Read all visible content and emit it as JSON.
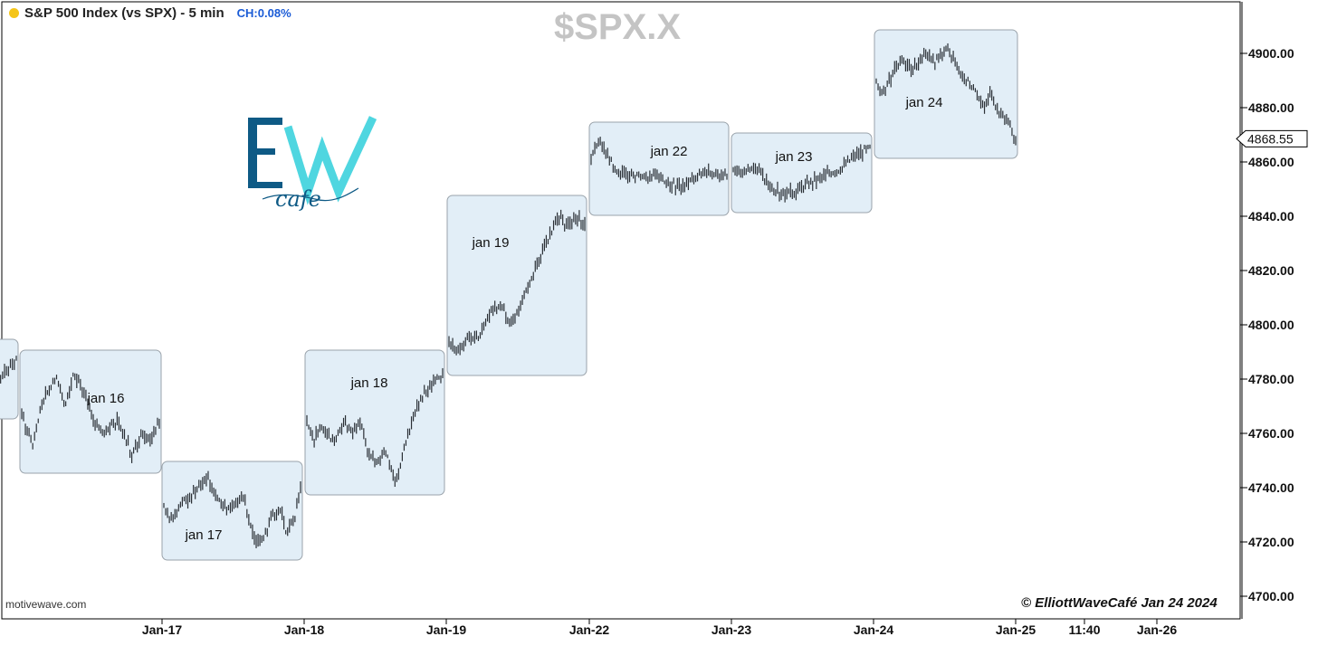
{
  "header": {
    "title": "S&P 500 Index (vs SPX) - 5 min",
    "change": "CH:0.08%",
    "symbol": "$SPX.X"
  },
  "footer": {
    "source": "motivewave.com",
    "copyright": "© ElliottWaveCafé Jan 24 2024"
  },
  "logo": {
    "letters": "EW",
    "script": "cafe",
    "colors": [
      "#0e5a85",
      "#4fd6e0"
    ]
  },
  "colors": {
    "bar": "#2a2f35",
    "box_fill": "#e2eef7",
    "box_stroke": "#9aa3ab",
    "last_price_box": "#ffffff"
  },
  "chart_data": {
    "type": "bar",
    "title": "S&P 500 Index (vs SPX) - 5 min",
    "ylim": [
      4695,
      4915
    ],
    "y_ticks": [
      "4700.00",
      "4720.00",
      "4740.00",
      "4760.00",
      "4780.00",
      "4800.00",
      "4820.00",
      "4840.00",
      "4860.00",
      "4880.00",
      "4900.00"
    ],
    "x_ticks": [
      "Jan-17",
      "Jan-18",
      "Jan-19",
      "Jan-22",
      "Jan-23",
      "Jan-24",
      "Jan-25",
      "11:40",
      "Jan-26"
    ],
    "last_price": "4868.55",
    "grid": false,
    "sessions": [
      {
        "label": "",
        "y_range": [
          4770,
          4790
        ],
        "path": [
          [
            0,
            4777
          ],
          [
            0.5,
            4782
          ],
          [
            1,
            4787
          ]
        ]
      },
      {
        "label": "jan 16",
        "y_range": [
          4750,
          4786
        ],
        "path": [
          [
            0,
            4767
          ],
          [
            0.08,
            4755
          ],
          [
            0.15,
            4772
          ],
          [
            0.25,
            4780
          ],
          [
            0.32,
            4770
          ],
          [
            0.38,
            4782
          ],
          [
            0.45,
            4776
          ],
          [
            0.52,
            4765
          ],
          [
            0.6,
            4760
          ],
          [
            0.7,
            4765
          ],
          [
            0.8,
            4752
          ],
          [
            0.88,
            4760
          ],
          [
            0.95,
            4758
          ],
          [
            1,
            4765
          ]
        ]
      },
      {
        "label": "jan 17",
        "y_range": [
          4718,
          4745
        ],
        "path": [
          [
            0,
            4733
          ],
          [
            0.05,
            4728
          ],
          [
            0.12,
            4734
          ],
          [
            0.22,
            4738
          ],
          [
            0.32,
            4744
          ],
          [
            0.4,
            4735
          ],
          [
            0.5,
            4732
          ],
          [
            0.58,
            4737
          ],
          [
            0.66,
            4722
          ],
          [
            0.7,
            4720
          ],
          [
            0.78,
            4728
          ],
          [
            0.85,
            4732
          ],
          [
            0.9,
            4723
          ],
          [
            0.96,
            4730
          ],
          [
            1,
            4740
          ]
        ]
      },
      {
        "label": "jan 18",
        "y_range": [
          4742,
          4786
        ],
        "path": [
          [
            0,
            4764
          ],
          [
            0.05,
            4758
          ],
          [
            0.12,
            4762
          ],
          [
            0.2,
            4757
          ],
          [
            0.28,
            4765
          ],
          [
            0.34,
            4760
          ],
          [
            0.4,
            4764
          ],
          [
            0.45,
            4752
          ],
          [
            0.52,
            4750
          ],
          [
            0.58,
            4754
          ],
          [
            0.62,
            4746
          ],
          [
            0.66,
            4743
          ],
          [
            0.72,
            4755
          ],
          [
            0.8,
            4768
          ],
          [
            0.88,
            4776
          ],
          [
            0.95,
            4780
          ],
          [
            1,
            4782
          ]
        ]
      },
      {
        "label": "jan 19",
        "y_range": [
          4786,
          4843
        ],
        "path": [
          [
            0,
            4794
          ],
          [
            0.06,
            4790
          ],
          [
            0.14,
            4796
          ],
          [
            0.22,
            4795
          ],
          [
            0.3,
            4804
          ],
          [
            0.38,
            4808
          ],
          [
            0.44,
            4801
          ],
          [
            0.5,
            4804
          ],
          [
            0.56,
            4812
          ],
          [
            0.62,
            4818
          ],
          [
            0.68,
            4826
          ],
          [
            0.74,
            4833
          ],
          [
            0.8,
            4840
          ],
          [
            0.86,
            4836
          ],
          [
            0.92,
            4840
          ],
          [
            1,
            4838
          ]
        ]
      },
      {
        "label": "jan 22",
        "y_range": [
          4845,
          4870
        ],
        "path": [
          [
            0,
            4862
          ],
          [
            0.05,
            4868
          ],
          [
            0.12,
            4862
          ],
          [
            0.2,
            4856
          ],
          [
            0.3,
            4855
          ],
          [
            0.4,
            4854
          ],
          [
            0.48,
            4856
          ],
          [
            0.56,
            4852
          ],
          [
            0.66,
            4851
          ],
          [
            0.76,
            4854
          ],
          [
            0.86,
            4857
          ],
          [
            0.94,
            4855
          ],
          [
            1,
            4854
          ]
        ]
      },
      {
        "label": "jan 23",
        "y_range": [
          4846,
          4866
        ],
        "path": [
          [
            0,
            4858
          ],
          [
            0.08,
            4856
          ],
          [
            0.16,
            4858
          ],
          [
            0.24,
            4853
          ],
          [
            0.32,
            4849
          ],
          [
            0.4,
            4848
          ],
          [
            0.5,
            4851
          ],
          [
            0.6,
            4853
          ],
          [
            0.7,
            4856
          ],
          [
            0.8,
            4858
          ],
          [
            0.88,
            4862
          ],
          [
            0.95,
            4864
          ],
          [
            1,
            4865
          ]
        ]
      },
      {
        "label": "jan 24",
        "y_range": [
          4866,
          4904
        ],
        "path": [
          [
            0,
            4889
          ],
          [
            0.06,
            4885
          ],
          [
            0.12,
            4893
          ],
          [
            0.18,
            4898
          ],
          [
            0.26,
            4894
          ],
          [
            0.34,
            4899
          ],
          [
            0.42,
            4897
          ],
          [
            0.5,
            4902
          ],
          [
            0.56,
            4897
          ],
          [
            0.62,
            4892
          ],
          [
            0.7,
            4887
          ],
          [
            0.76,
            4880
          ],
          [
            0.82,
            4885
          ],
          [
            0.88,
            4878
          ],
          [
            0.94,
            4876
          ],
          [
            1,
            4868
          ]
        ]
      }
    ]
  }
}
